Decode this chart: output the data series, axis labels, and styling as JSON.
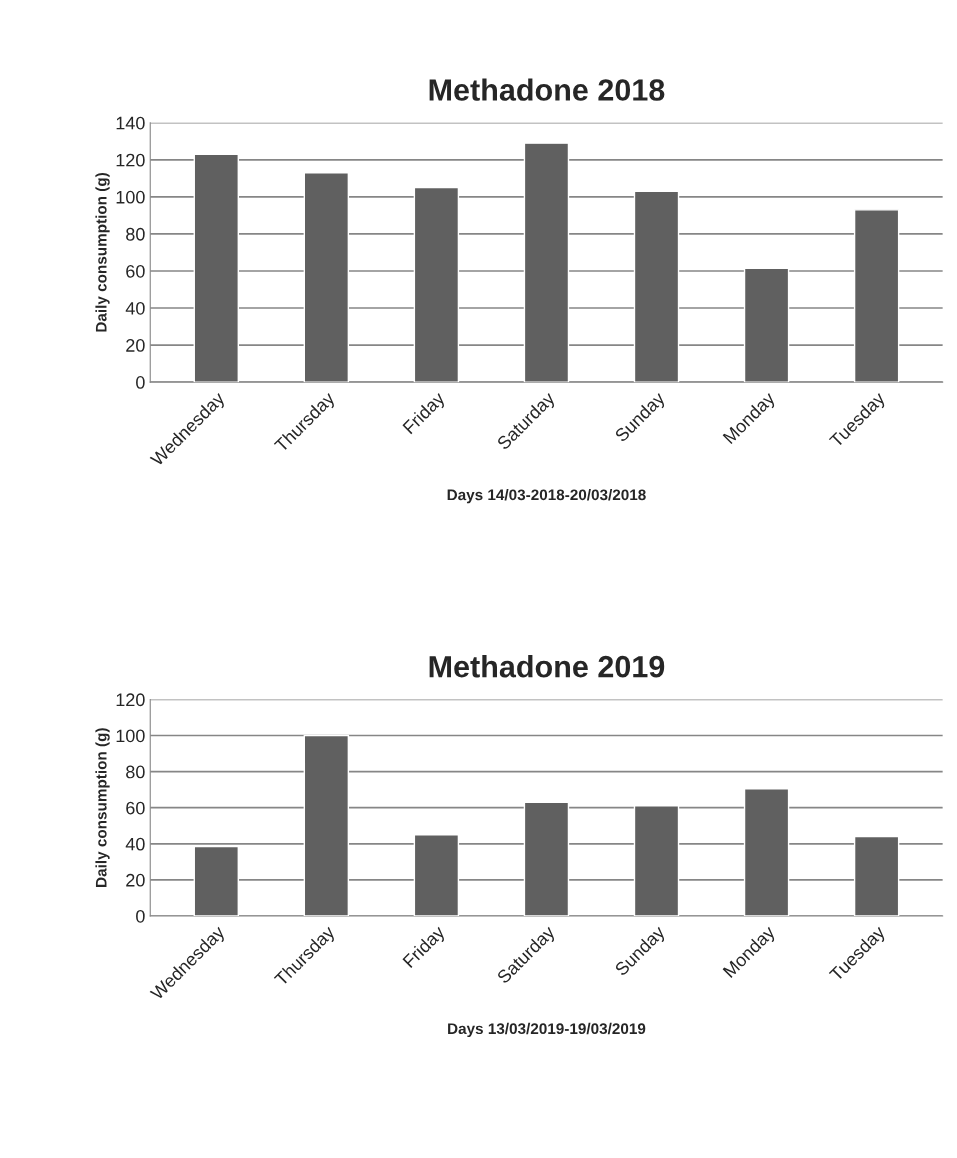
{
  "chart_data": [
    {
      "type": "bar",
      "title": "Methadone 2018",
      "xlabel": "Days 14/03-2018-20/03/2018",
      "ylabel": "Daily consumption (g)",
      "categories": [
        "Wednesday",
        "Thursday",
        "Friday",
        "Saturday",
        "Sunday",
        "Monday",
        "Tuesday"
      ],
      "values": [
        123,
        113,
        105,
        129,
        103,
        61.5,
        93
      ],
      "color": "#606060",
      "ylim": [
        0,
        140
      ],
      "yticks": [
        0,
        20,
        40,
        60,
        80,
        100,
        120,
        140
      ],
      "grid": "y"
    },
    {
      "type": "bar",
      "title": "Methadone 2019",
      "xlabel": "Days 13/03/2019-19/03/2019",
      "ylabel": "Daily consumption (g)",
      "categories": [
        "Wednesday",
        "Thursday",
        "Friday",
        "Saturday",
        "Sunday",
        "Monday",
        "Tuesday"
      ],
      "values": [
        38.5,
        100,
        45,
        63,
        61,
        70.5,
        44
      ],
      "color": "#606060",
      "ylim": [
        0,
        120
      ],
      "yticks": [
        0,
        20,
        40,
        60,
        80,
        100,
        120
      ],
      "grid": "y"
    }
  ]
}
